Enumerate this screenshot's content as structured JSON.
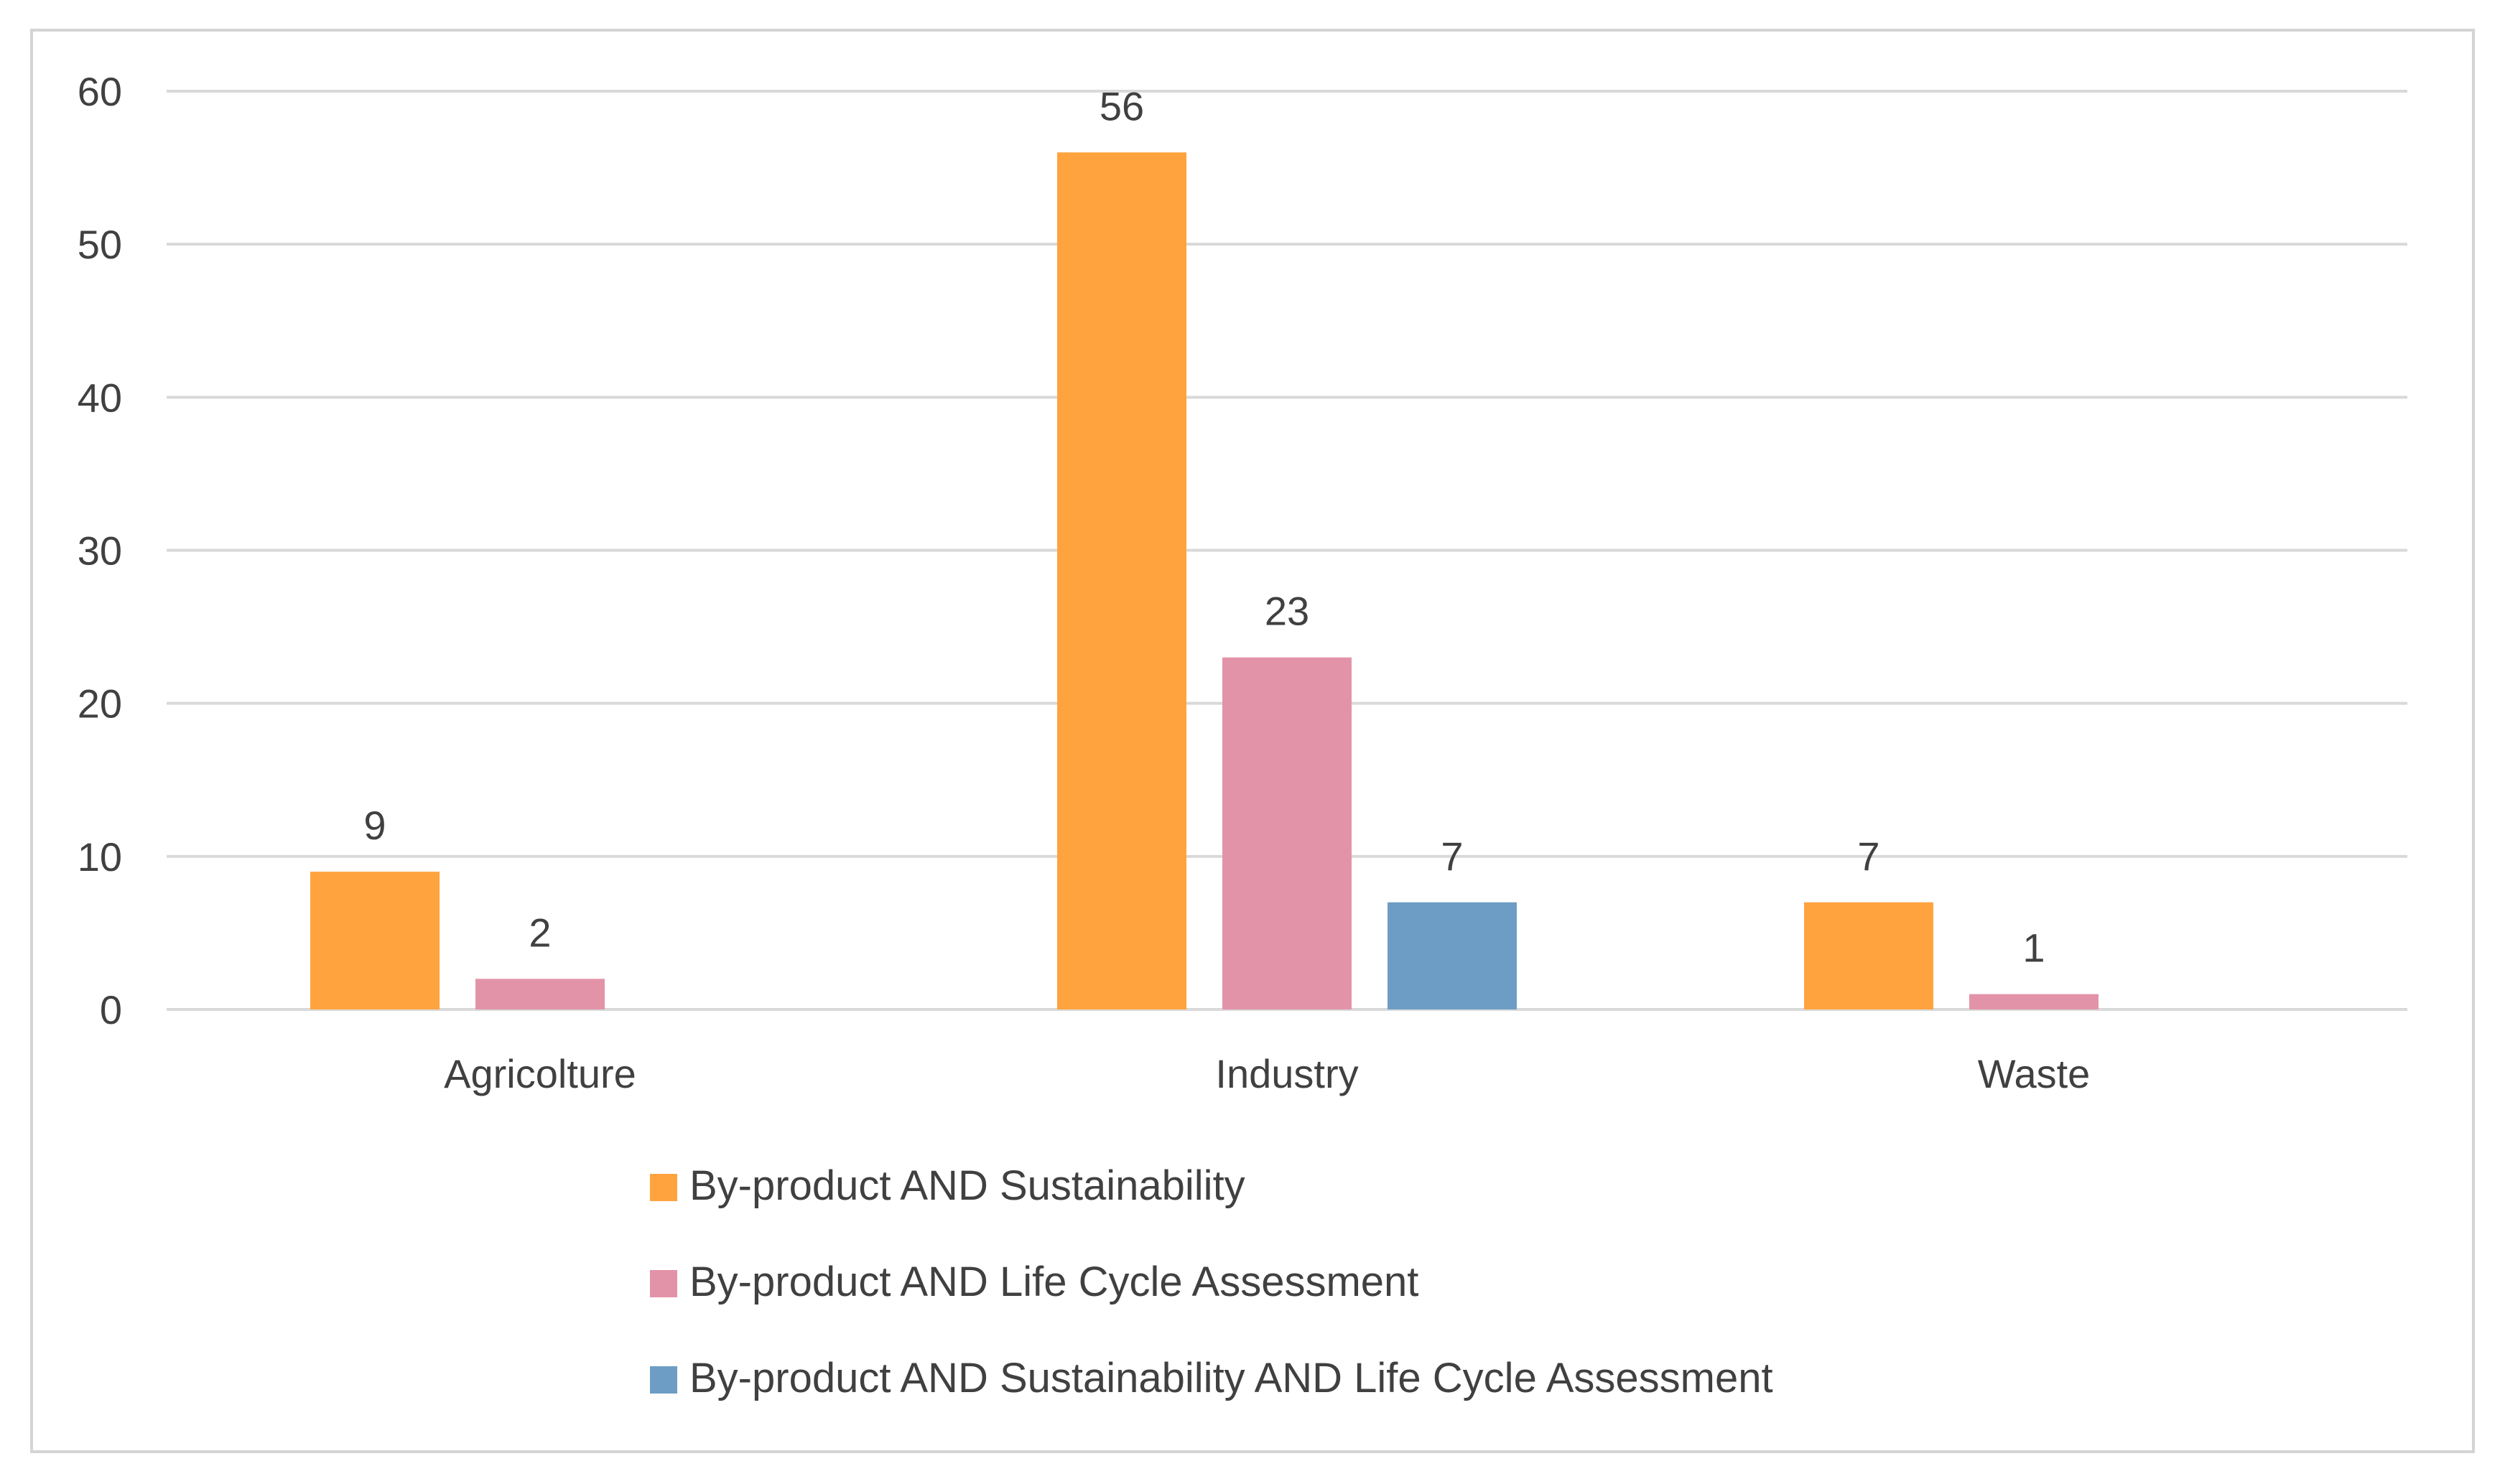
{
  "chart_data": {
    "type": "bar",
    "title": "",
    "xlabel": "",
    "ylabel": "",
    "categories": [
      "Agricolture",
      "Industry",
      "Waste"
    ],
    "ylim": [
      0,
      60
    ],
    "yticks": [
      0,
      10,
      20,
      30,
      40,
      50,
      60
    ],
    "grid": true,
    "legend_position": "bottom",
    "series": [
      {
        "name": "By-product AND Sustainability",
        "color": "#FFA33F",
        "values": [
          9,
          56,
          7
        ]
      },
      {
        "name": "By-product AND Life Cycle Assessment",
        "color": "#E393A8",
        "values": [
          2,
          23,
          1
        ]
      },
      {
        "name": "By-product AND Sustainability AND Life Cycle Assessment",
        "color": "#6D9DC4",
        "values": [
          null,
          7,
          null
        ]
      }
    ]
  }
}
